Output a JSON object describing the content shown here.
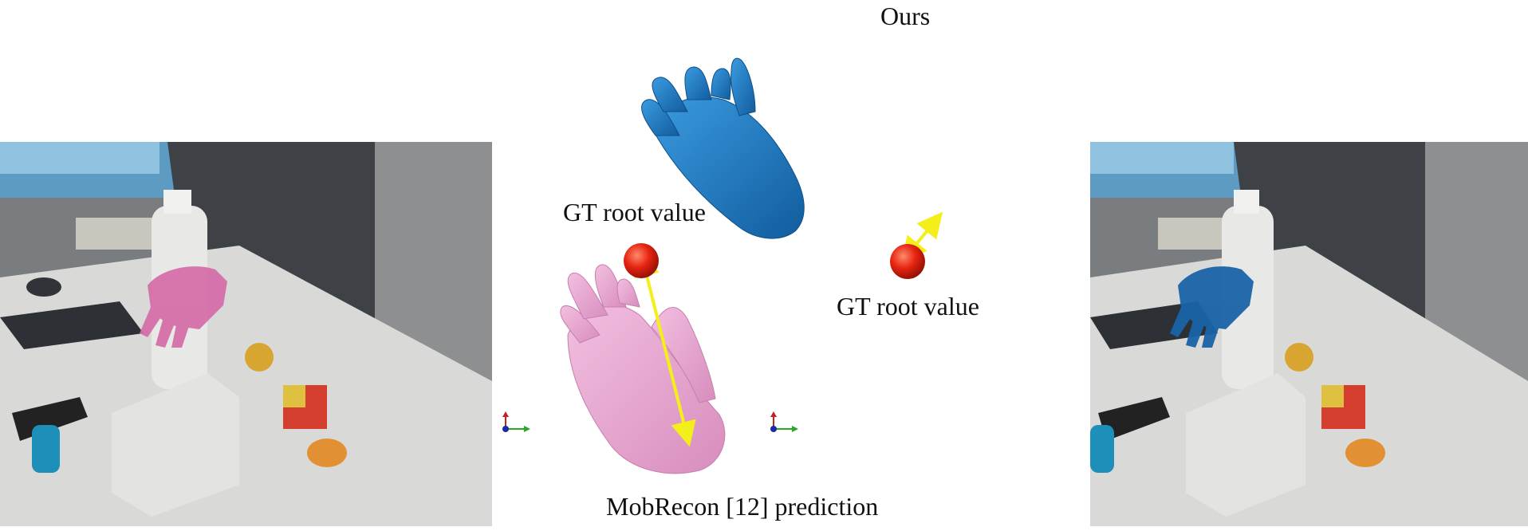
{
  "labels": {
    "ours": "Ours",
    "gt_root_left": "GT root value",
    "gt_root_right": "GT root value",
    "mobrecon": "MobRecon [12] prediction"
  },
  "colors": {
    "mobrecon_hand": "#e8a6d0",
    "ours_hand": "#1d7ac2",
    "root_sphere": "#e62410",
    "error_arrow": "#f4ee1a",
    "axis_x": "#2aa82a",
    "axis_y": "#c82020",
    "axis_z": "#1a2aa0"
  }
}
